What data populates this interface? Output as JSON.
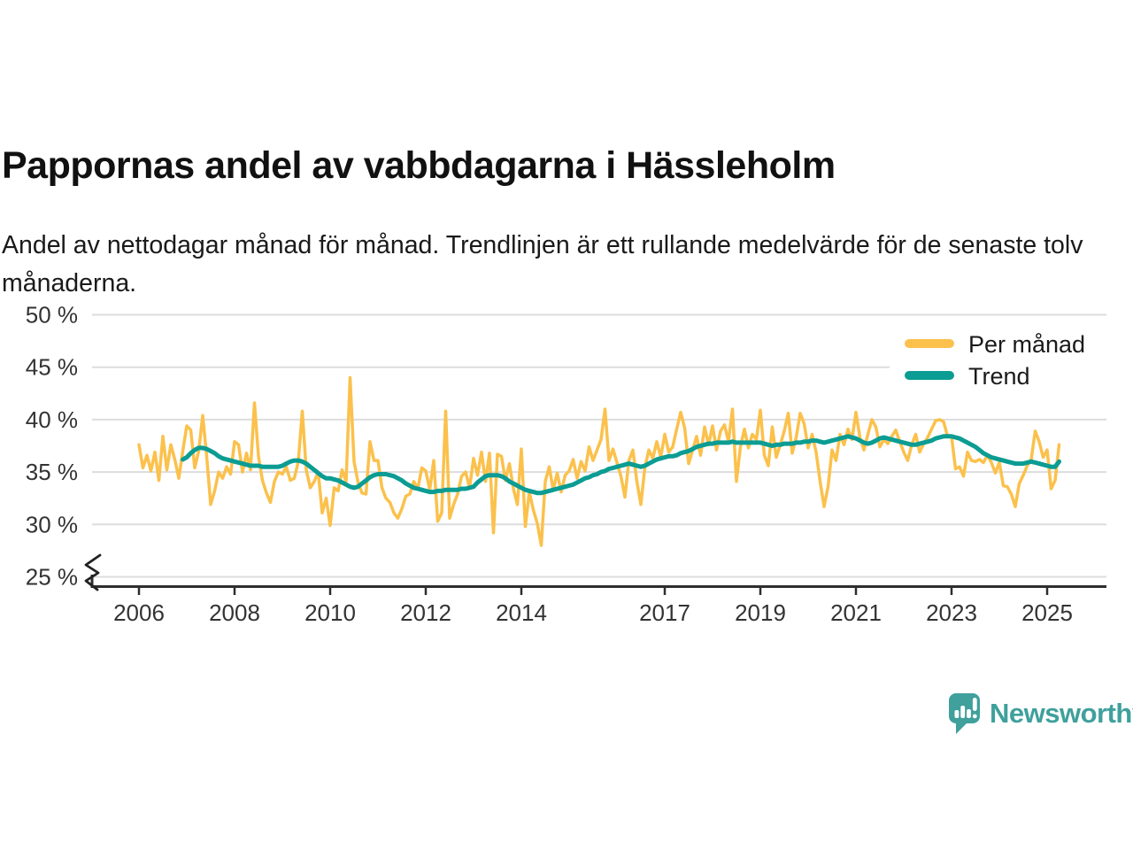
{
  "header": {
    "title": "Pappornas andel av vabbdagarna i Hässleholm",
    "subtitle": "Andel av nettodagar månad för månad. Trendlinjen är ett rullande medelvärde för de senaste tolv månaderna."
  },
  "chart_data": {
    "type": "line",
    "title": "Pappornas andel av vabbdagarna i Hässleholm",
    "xlabel": "",
    "ylabel": "",
    "x_start": "2006-01",
    "x_end": "2025-04",
    "ylim": [
      25,
      50
    ],
    "y_axis_break": true,
    "grid": "horizontal",
    "legend_position": "top-right",
    "y_ticks": [
      50,
      45,
      40,
      35,
      30,
      25
    ],
    "y_tick_labels": [
      "50 %",
      "45 %",
      "40 %",
      "35 %",
      "30 %",
      "25 %"
    ],
    "x_ticks": [
      2006,
      2008,
      2010,
      2012,
      2014,
      2017,
      2019,
      2021,
      2023,
      2025
    ],
    "x_tick_labels": [
      "2006",
      "2008",
      "2010",
      "2012",
      "2014",
      "2017",
      "2019",
      "2021",
      "2023",
      "2025"
    ],
    "series": [
      {
        "name": "Per månad",
        "color": "#FBC14C",
        "start": "2006-01",
        "values": [
          37.6,
          35.4,
          36.6,
          35.1,
          36.9,
          34.2,
          38.4,
          35.2,
          37.6,
          36.2,
          34.4,
          37.0,
          39.4,
          39.0,
          35.4,
          37.0,
          40.4,
          36.5,
          31.9,
          33.2,
          35.0,
          34.4,
          35.5,
          34.8,
          37.9,
          37.6,
          35.0,
          36.8,
          35.2,
          41.6,
          36.5,
          34.2,
          33.0,
          32.1,
          34.1,
          35.0,
          34.8,
          35.5,
          34.2,
          34.4,
          36.0,
          40.8,
          35.2,
          33.5,
          34.1,
          35.0,
          31.1,
          32.5,
          29.9,
          33.5,
          33.2,
          35.2,
          34.1,
          44.0,
          36.0,
          34.0,
          33.0,
          32.9,
          37.9,
          36.1,
          36.1,
          33.5,
          32.5,
          32.1,
          31.1,
          30.6,
          31.5,
          32.7,
          32.9,
          34.1,
          33.4,
          35.4,
          35.1,
          33.3,
          36.1,
          30.3,
          31.1,
          40.8,
          30.6,
          31.9,
          32.9,
          34.6,
          35.0,
          33.5,
          36.3,
          34.7,
          36.9,
          34.1,
          36.8,
          29.2,
          36.7,
          36.5,
          34.2,
          35.8,
          33.4,
          31.9,
          37.2,
          29.8,
          33.1,
          31.4,
          30.1,
          28.0,
          34.1,
          35.5,
          33.3,
          34.9,
          33.1,
          34.7,
          35.1,
          36.2,
          34.4,
          36.0,
          35.1,
          37.4,
          36.1,
          37.1,
          38.1,
          41.0,
          36.1,
          37.2,
          35.9,
          34.6,
          32.6,
          36.1,
          37.1,
          34.1,
          31.9,
          35.4,
          37.1,
          36.3,
          37.9,
          36.4,
          38.6,
          36.9,
          37.4,
          39.1,
          40.7,
          39.2,
          35.8,
          37.1,
          38.4,
          36.6,
          39.3,
          37.6,
          39.4,
          37.1,
          38.9,
          39.5,
          37.9,
          41.0,
          34.1,
          37.4,
          39.1,
          37.3,
          38.6,
          38.1,
          40.9,
          36.6,
          35.6,
          39.3,
          36.4,
          37.6,
          38.9,
          40.6,
          36.8,
          38.3,
          40.6,
          39.6,
          37.3,
          38.6,
          36.9,
          34.1,
          31.7,
          33.6,
          37.1,
          36.1,
          38.6,
          37.6,
          39.1,
          38.1,
          40.7,
          38.3,
          37.1,
          38.6,
          40.0,
          39.3,
          37.4,
          38.1,
          37.7,
          38.4,
          39.0,
          37.9,
          36.9,
          36.1,
          37.6,
          38.6,
          36.9,
          37.7,
          38.3,
          39.1,
          39.9,
          40.0,
          39.8,
          38.4,
          38.4,
          35.3,
          35.5,
          34.6,
          36.9,
          36.1,
          36.0,
          36.2,
          35.9,
          36.6,
          35.9,
          34.9,
          35.9,
          33.7,
          33.6,
          32.9,
          31.7,
          33.9,
          34.7,
          35.6,
          36.2,
          38.9,
          37.9,
          36.4,
          37.1,
          33.4,
          34.2,
          37.6
        ]
      },
      {
        "name": "Trend",
        "color": "#0B9C93",
        "start": "2006-12",
        "values": [
          36.2,
          36.4,
          36.8,
          37.1,
          37.3,
          37.3,
          37.2,
          37.0,
          36.8,
          36.5,
          36.3,
          36.2,
          36.1,
          36.0,
          35.9,
          35.8,
          35.7,
          35.6,
          35.6,
          35.6,
          35.5,
          35.5,
          35.5,
          35.5,
          35.5,
          35.6,
          35.8,
          36.0,
          36.1,
          36.1,
          36.0,
          35.8,
          35.5,
          35.2,
          34.9,
          34.6,
          34.4,
          34.4,
          34.3,
          34.2,
          34.0,
          33.8,
          33.6,
          33.5,
          33.6,
          33.9,
          34.2,
          34.5,
          34.7,
          34.8,
          34.8,
          34.8,
          34.7,
          34.6,
          34.4,
          34.2,
          33.9,
          33.7,
          33.5,
          33.4,
          33.3,
          33.2,
          33.1,
          33.1,
          33.2,
          33.2,
          33.3,
          33.3,
          33.3,
          33.3,
          33.4,
          33.4,
          33.5,
          33.6,
          34.0,
          34.3,
          34.6,
          34.7,
          34.7,
          34.7,
          34.6,
          34.4,
          34.1,
          33.9,
          33.7,
          33.5,
          33.3,
          33.2,
          33.1,
          33.0,
          33.0,
          33.1,
          33.2,
          33.3,
          33.4,
          33.5,
          33.6,
          33.7,
          33.8,
          34.0,
          34.2,
          34.4,
          34.5,
          34.7,
          34.8,
          35.0,
          35.1,
          35.3,
          35.4,
          35.5,
          35.6,
          35.7,
          35.8,
          35.7,
          35.6,
          35.5,
          35.6,
          35.8,
          36.0,
          36.2,
          36.3,
          36.4,
          36.5,
          36.5,
          36.6,
          36.8,
          36.9,
          37.0,
          37.2,
          37.4,
          37.5,
          37.6,
          37.7,
          37.7,
          37.8,
          37.8,
          37.8,
          37.8,
          37.9,
          37.8,
          37.8,
          37.8,
          37.8,
          37.8,
          37.8,
          37.8,
          37.7,
          37.6,
          37.5,
          37.6,
          37.6,
          37.7,
          37.7,
          37.7,
          37.8,
          37.8,
          37.9,
          37.9,
          38.0,
          38.0,
          37.9,
          37.8,
          37.9,
          38.0,
          38.1,
          38.2,
          38.3,
          38.4,
          38.3,
          38.2,
          38.0,
          37.8,
          37.7,
          37.8,
          38.0,
          38.2,
          38.3,
          38.2,
          38.1,
          38.0,
          37.9,
          37.8,
          37.7,
          37.6,
          37.6,
          37.7,
          37.8,
          37.9,
          38.0,
          38.2,
          38.3,
          38.4,
          38.4,
          38.4,
          38.3,
          38.2,
          38.0,
          37.8,
          37.6,
          37.4,
          37.1,
          36.8,
          36.6,
          36.4,
          36.3,
          36.2,
          36.1,
          36.0,
          35.9,
          35.8,
          35.8,
          35.8,
          35.9,
          36.0,
          35.9,
          35.8,
          35.7,
          35.6,
          35.5,
          35.5,
          36.0
        ]
      }
    ],
    "colors": {
      "per_month_line": "#FBC14C",
      "trend_line": "#0B9C93",
      "gridline": "#DDDDDD",
      "axis": "#2E2E2E",
      "tick_text": "#333333"
    }
  },
  "footer": {
    "brand": "Newsworthy",
    "logo_icon": "newsworthy-speech-bubble-bar-chart-icon",
    "brand_color": "#3FA09C"
  }
}
